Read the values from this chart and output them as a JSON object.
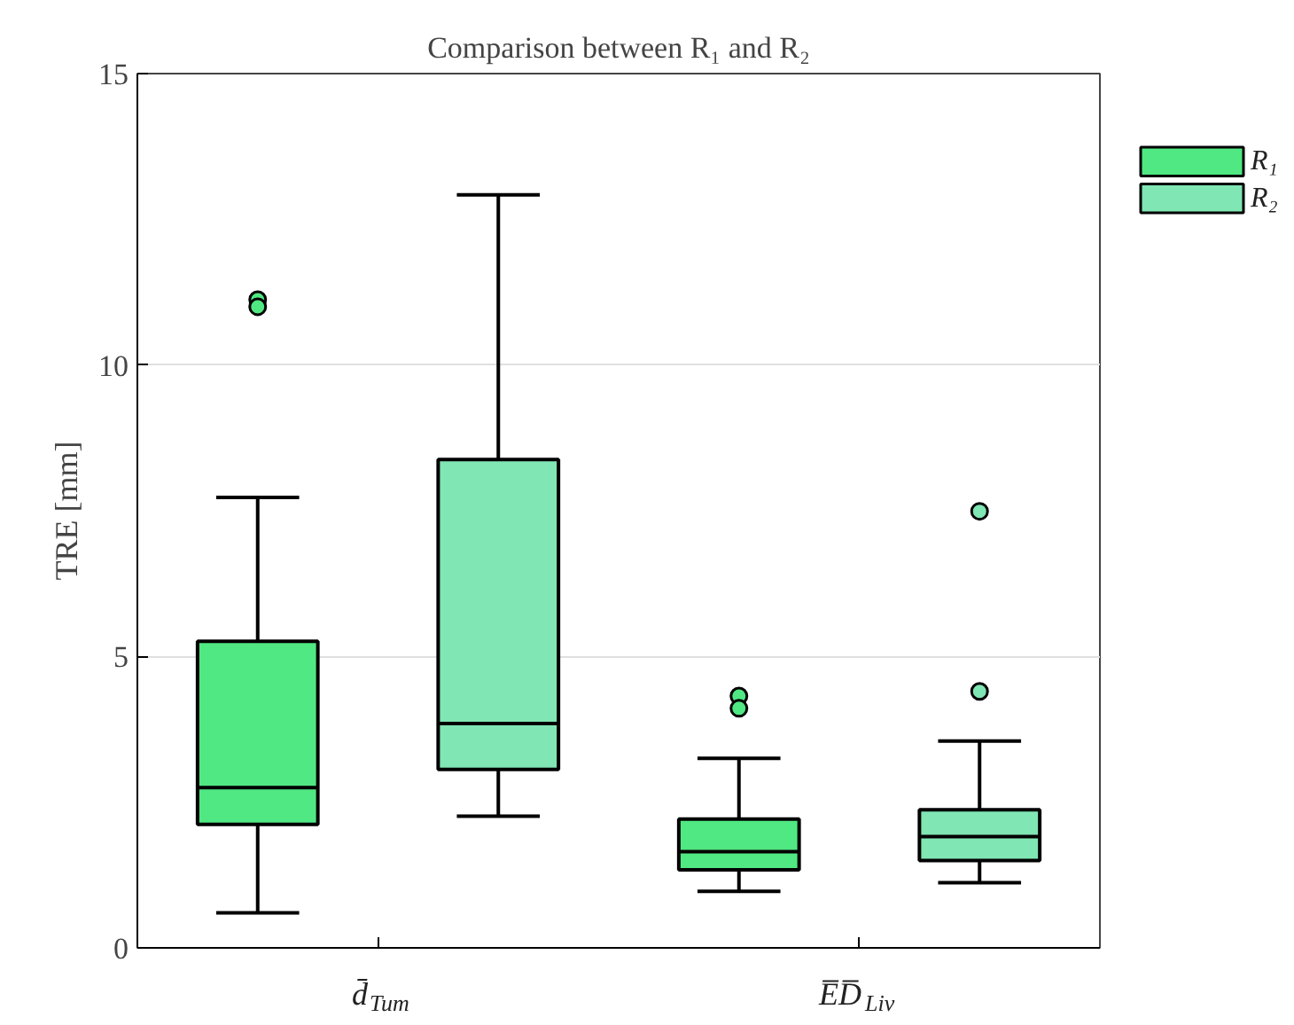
{
  "chart_data": {
    "type": "box",
    "title": "Comparison between R₁ and R₂",
    "ylabel": "TRE [mm]",
    "categories": [
      "d̄$_{Tum}$",
      "E̅D̅$_{Liv}$"
    ],
    "ylim": [
      0,
      15
    ],
    "yticks": [
      0,
      5,
      10,
      15
    ],
    "grid": "y",
    "legend": "top right",
    "series": [
      {
        "name": "R₁",
        "color": "#50e882",
        "boxes": [
          {
            "low": 0.6,
            "q1": 2.12,
            "median": 2.75,
            "q3": 5.26,
            "high": 7.73,
            "outliers": [
              11.12,
              11.0
            ]
          },
          {
            "low": 0.97,
            "q1": 1.34,
            "median": 1.65,
            "q3": 2.21,
            "high": 3.25,
            "outliers": [
              4.32,
              4.11
            ]
          }
        ]
      },
      {
        "name": "R₂",
        "color": "#80e6b4",
        "boxes": [
          {
            "low": 2.26,
            "q1": 3.06,
            "median": 3.85,
            "q3": 8.38,
            "high": 12.92
          },
          {
            "low": 1.12,
            "q1": 1.5,
            "median": 1.91,
            "q3": 2.37,
            "high": 3.55,
            "outliers": [
              7.49,
              4.4
            ]
          }
        ]
      }
    ]
  }
}
